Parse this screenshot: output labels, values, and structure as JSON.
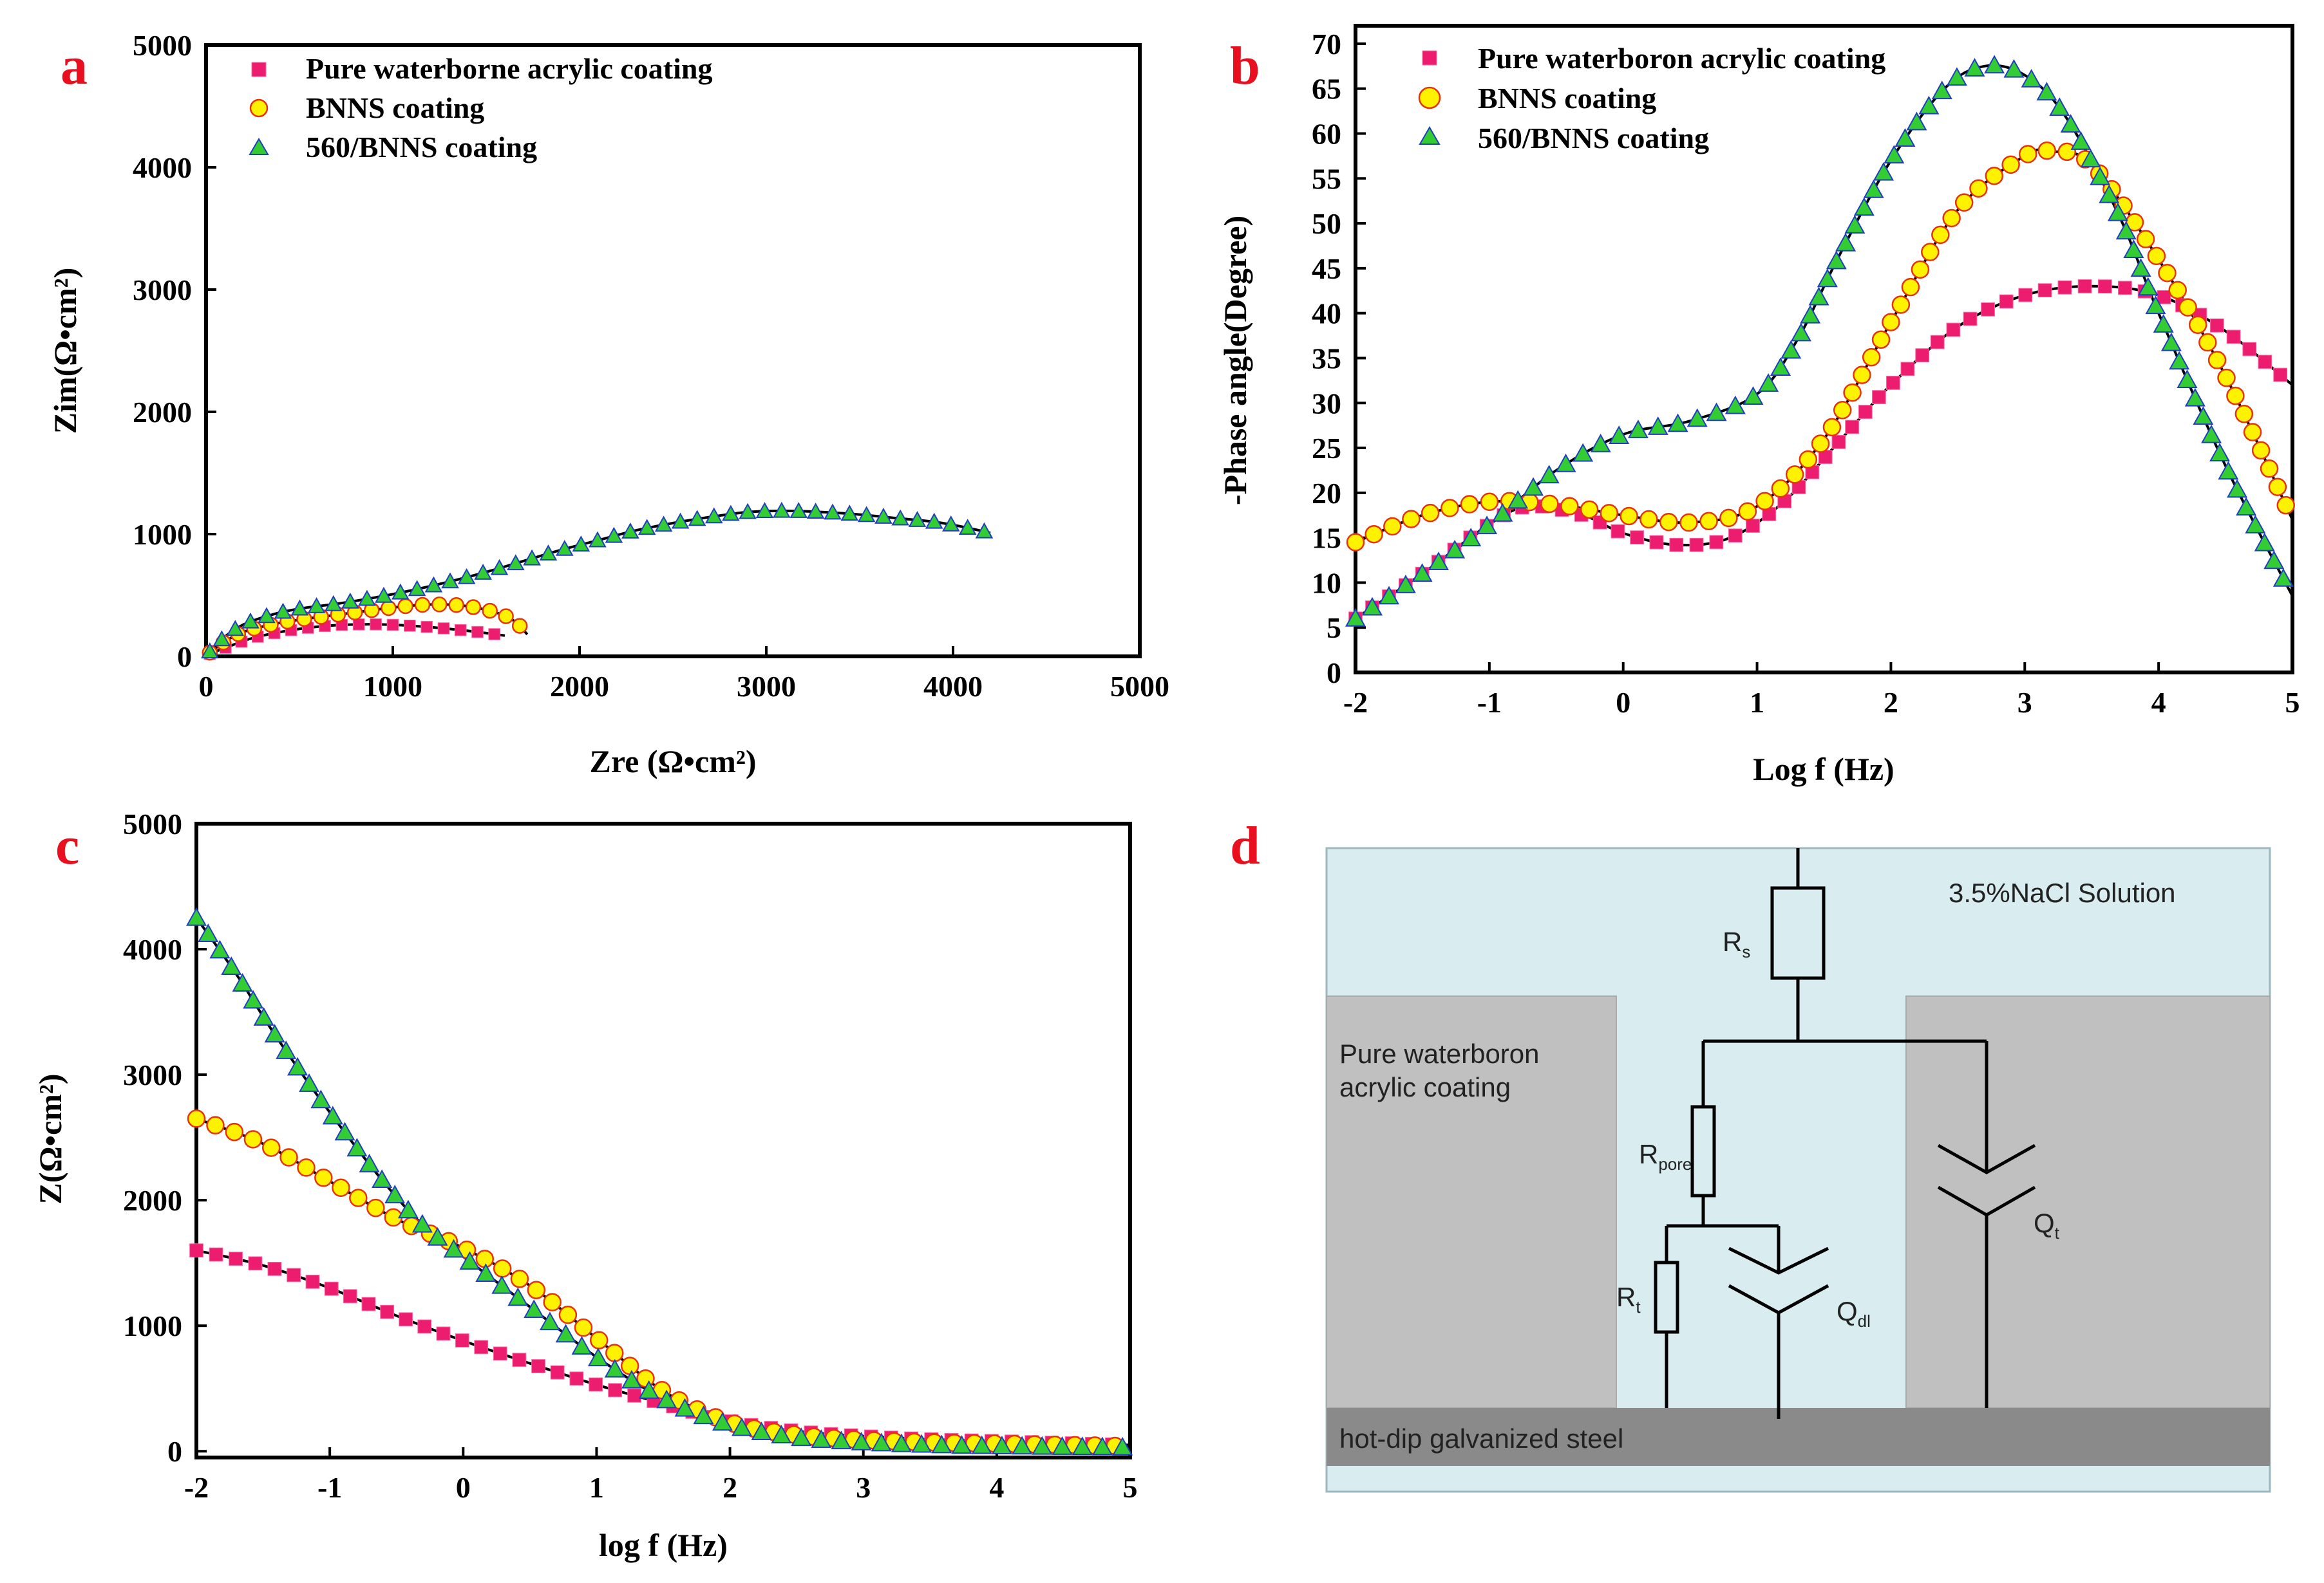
{
  "colors": {
    "panel_label": "#e8101e",
    "pure_marker": "#ec1c6e",
    "bnns_marker": "#fff200",
    "bnns_edge": "#e8320c",
    "c560_marker": "#33cc33",
    "c560_edge": "#1f3fbf",
    "solution": "#d9ecf0",
    "coating": "#c0c0c0",
    "steel": "#8a8a8a"
  },
  "panels": {
    "a": {
      "label": "a"
    },
    "b": {
      "label": "b"
    },
    "c": {
      "label": "c"
    },
    "d": {
      "label": "d"
    }
  },
  "chart_data": [
    {
      "id": "a",
      "type": "scatter",
      "title": "",
      "xlabel": "Zre (Ω•cm²)",
      "ylabel": "Zim(Ω•cm²)",
      "xlim": [
        0,
        5000
      ],
      "ylim": [
        0,
        5000
      ],
      "xticks": [
        "0",
        "1000",
        "2000",
        "3000",
        "4000",
        "5000"
      ],
      "yticks": [
        "0",
        "1000",
        "2000",
        "3000",
        "4000",
        "5000"
      ],
      "legend": [
        "Pure waterborne acrylic coating",
        "BNNS  coating",
        "560/BNNS coating"
      ],
      "legend_position": "top-left",
      "series": [
        {
          "name": "Pure waterborne acrylic coating",
          "marker": "square",
          "x": [
            20,
            120,
            250,
            400,
            550,
            700,
            850,
            1000,
            1150,
            1300,
            1450,
            1600
          ],
          "y": [
            20,
            80,
            150,
            200,
            235,
            255,
            262,
            258,
            245,
            225,
            200,
            170
          ]
        },
        {
          "name": "BNNS  coating",
          "marker": "circle",
          "x": [
            20,
            100,
            200,
            350,
            500,
            650,
            800,
            950,
            1100,
            1250,
            1400,
            1550,
            1650,
            1720
          ],
          "y": [
            30,
            120,
            200,
            260,
            300,
            330,
            360,
            390,
            415,
            425,
            410,
            360,
            290,
            180
          ]
        },
        {
          "name": "560/BNNS coating",
          "marker": "triangle",
          "x": [
            20,
            100,
            200,
            350,
            500,
            700,
            900,
            1100,
            1300,
            1500,
            1700,
            1900,
            2100,
            2300,
            2500,
            2700,
            2900,
            3100,
            3300,
            3500,
            3700,
            3900,
            4050,
            4200
          ],
          "y": [
            40,
            160,
            260,
            340,
            390,
            430,
            480,
            540,
            610,
            690,
            780,
            870,
            950,
            1030,
            1090,
            1140,
            1180,
            1190,
            1180,
            1160,
            1130,
            1100,
            1060,
            1010
          ]
        }
      ]
    },
    {
      "id": "b",
      "type": "scatter",
      "title": "",
      "xlabel": "Log f (Hz)",
      "ylabel": "-Phase angle(Degree)",
      "xlim": [
        -2,
        5
      ],
      "ylim": [
        0,
        72
      ],
      "xticks": [
        "-2",
        "-1",
        "0",
        "1",
        "2",
        "3",
        "4",
        "5"
      ],
      "yticks": [
        "0",
        "5",
        "10",
        "15",
        "20",
        "25",
        "30",
        "35",
        "40",
        "45",
        "50",
        "55",
        "60",
        "65",
        "70"
      ],
      "legend": [
        "Pure waterboron acrylic coating",
        "BNNS coating",
        "560/BNNS coating"
      ],
      "legend_position": "top-left",
      "series": [
        {
          "name": "Pure waterboron acrylic coating",
          "marker": "square",
          "x": [
            -2,
            -1.5,
            -1,
            -0.7,
            -0.3,
            0,
            0.4,
            0.8,
            1.2,
            1.6,
            2,
            2.5,
            3,
            3.5,
            4,
            4.5,
            5
          ],
          "y": [
            6,
            11,
            16.5,
            18.5,
            17.5,
            15.5,
            14.2,
            15,
            19,
            25.5,
            32,
            38.5,
            42,
            43,
            42,
            38,
            32
          ]
        },
        {
          "name": "BNNS coating",
          "marker": "circle",
          "x": [
            -2,
            -1.5,
            -1,
            -0.5,
            0,
            0.5,
            1,
            1.5,
            2,
            2.5,
            3,
            3.2,
            3.5,
            4,
            4.5,
            5
          ],
          "y": [
            14.5,
            17.5,
            19,
            18.7,
            17.5,
            16.7,
            18.5,
            26,
            39,
            51.5,
            57.5,
            58,
            56.5,
            46,
            33,
            17
          ]
        },
        {
          "name": "560/BNNS coating",
          "marker": "triangle",
          "x": [
            -2,
            -1.5,
            -1,
            -0.5,
            0,
            0.5,
            1,
            1.3,
            1.6,
            2,
            2.4,
            2.7,
            3,
            3.3,
            3.7,
            4,
            4.5,
            5
          ],
          "y": [
            6,
            11,
            16.5,
            22.5,
            26.5,
            28,
            31,
            37,
            46,
            57,
            65,
            67.5,
            66.5,
            62,
            51,
            40,
            23,
            8.5
          ]
        }
      ]
    },
    {
      "id": "c",
      "type": "scatter",
      "title": "",
      "xlabel": "log f (Hz)",
      "ylabel": "Z(Ω•cm²)",
      "xlim": [
        -2,
        5
      ],
      "ylim": [
        -50,
        5000
      ],
      "xticks": [
        "-2",
        "-1",
        "0",
        "1",
        "2",
        "3",
        "4",
        "5"
      ],
      "yticks": [
        "0",
        "1000",
        "2000",
        "3000",
        "4000",
        "5000"
      ],
      "series": [
        {
          "name": "Pure waterboron acrylic coating",
          "marker": "square",
          "x": [
            -2,
            -1.5,
            -1,
            -0.5,
            0,
            0.5,
            1,
            1.5,
            2,
            2.5,
            3,
            3.5,
            4,
            4.5,
            5
          ],
          "y": [
            1600,
            1480,
            1300,
            1080,
            880,
            700,
            530,
            380,
            240,
            160,
            120,
            95,
            80,
            65,
            50
          ]
        },
        {
          "name": "BNNS coating",
          "marker": "circle",
          "x": [
            -2,
            -1.5,
            -1,
            -0.5,
            0,
            0.5,
            1,
            1.5,
            2,
            2.5,
            3,
            3.5,
            4,
            4.5,
            5
          ],
          "y": [
            2650,
            2450,
            2150,
            1850,
            1620,
            1320,
            900,
            480,
            230,
            130,
            90,
            70,
            60,
            50,
            40
          ]
        },
        {
          "name": "560/BNNS coating",
          "marker": "triangle",
          "x": [
            -2,
            -1.7,
            -1.4,
            -1,
            -0.6,
            -0.3,
            0,
            0.5,
            1,
            1.5,
            2,
            2.5,
            3,
            3.5,
            4,
            4.5,
            5
          ],
          "y": [
            4250,
            3800,
            3300,
            2700,
            2150,
            1800,
            1550,
            1150,
            750,
            420,
            210,
            110,
            70,
            50,
            40,
            35,
            30
          ]
        }
      ]
    }
  ],
  "circuit": {
    "solution_label": "3.5%NaCl Solution",
    "coating_label_line1": "Pure waterboron",
    "coating_label_line2": "acrylic coating",
    "steel_label": "hot-dip galvanized steel",
    "rs_main": "R",
    "rs_sub": "s",
    "rpore_main": "R",
    "rpore_sub": "pore",
    "rt_main": "R",
    "rt_sub": "t",
    "qdl_main": "Q",
    "qdl_sub": "dl",
    "qt_main": "Q",
    "qt_sub": "t"
  }
}
